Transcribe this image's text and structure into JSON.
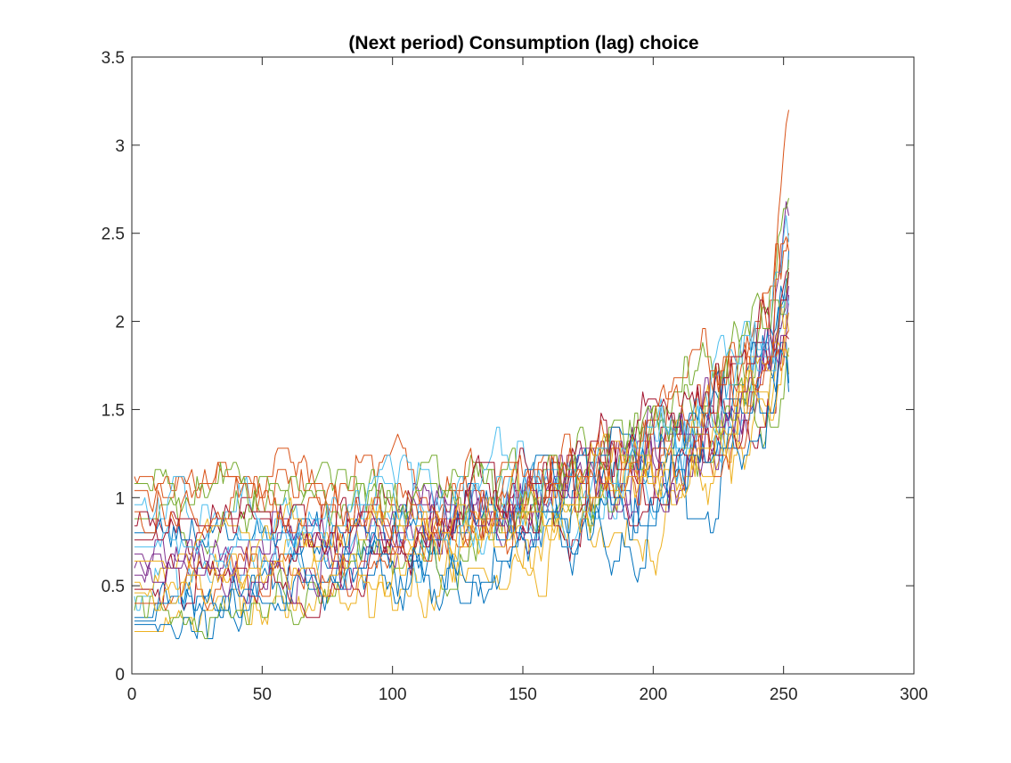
{
  "chart_data": {
    "type": "line",
    "title": "(Next period) Consumption (lag) choice",
    "xlabel": "",
    "ylabel": "",
    "xlim": [
      0,
      300
    ],
    "ylim": [
      0,
      3.5
    ],
    "xticks": [
      0,
      50,
      100,
      150,
      200,
      250,
      300
    ],
    "yticks": [
      0,
      0.5,
      1,
      1.5,
      2,
      2.5,
      3,
      3.5
    ],
    "xtick_labels": [
      "0",
      "50",
      "100",
      "150",
      "200",
      "250",
      "300"
    ],
    "ytick_labels": [
      "0",
      "0.5",
      "1",
      "1.5",
      "2",
      "2.5",
      "3",
      "3.5"
    ],
    "grid": false,
    "legend": "none",
    "n_periods": 252,
    "value_step": 0.04,
    "colors": [
      "#0072BD",
      "#D95319",
      "#EDB120",
      "#7E2F8E",
      "#77AC30",
      "#4DBEEE",
      "#A2142F"
    ],
    "series": [
      {
        "period": [
          1,
          20,
          50,
          80,
          110,
          140,
          170,
          200,
          230,
          245,
          252
        ],
        "values": [
          0.32,
          0.4,
          0.52,
          0.62,
          0.72,
          0.85,
          1.0,
          1.2,
          1.55,
          1.9,
          2.4
        ]
      },
      {
        "period": [
          1,
          20,
          50,
          80,
          110,
          140,
          170,
          200,
          230,
          245,
          252
        ],
        "values": [
          1.12,
          1.1,
          1.05,
          1.02,
          1.05,
          1.1,
          1.2,
          1.4,
          1.75,
          2.2,
          3.2
        ]
      },
      {
        "period": [
          1,
          20,
          50,
          80,
          110,
          140,
          170,
          200,
          230,
          245,
          252
        ],
        "values": [
          0.24,
          0.3,
          0.38,
          0.45,
          0.55,
          0.65,
          0.8,
          0.95,
          1.2,
          1.45,
          1.7
        ]
      },
      {
        "period": [
          1,
          20,
          50,
          80,
          110,
          140,
          170,
          200,
          230,
          245,
          252
        ],
        "values": [
          0.6,
          0.65,
          0.72,
          0.78,
          0.85,
          0.95,
          1.1,
          1.3,
          1.6,
          1.95,
          2.6
        ]
      },
      {
        "period": [
          1,
          20,
          50,
          80,
          110,
          140,
          170,
          200,
          230,
          245,
          252
        ],
        "values": [
          0.88,
          0.9,
          0.92,
          0.95,
          1.0,
          1.05,
          1.15,
          1.35,
          1.65,
          2.05,
          2.7
        ]
      },
      {
        "period": [
          1,
          20,
          50,
          80,
          110,
          140,
          170,
          200,
          230,
          245,
          252
        ],
        "values": [
          0.44,
          0.5,
          0.58,
          0.66,
          0.76,
          0.88,
          1.02,
          1.2,
          1.48,
          1.8,
          2.1
        ]
      },
      {
        "period": [
          1,
          20,
          50,
          80,
          110,
          140,
          170,
          200,
          230,
          245,
          252
        ],
        "values": [
          0.76,
          0.78,
          0.8,
          0.82,
          0.88,
          0.96,
          1.08,
          1.28,
          1.55,
          1.85,
          2.3
        ]
      },
      {
        "period": [
          1,
          20,
          50,
          80,
          110,
          140,
          170,
          200,
          230,
          245,
          252
        ],
        "values": [
          0.28,
          0.34,
          0.42,
          0.5,
          0.6,
          0.7,
          0.84,
          1.0,
          1.25,
          1.5,
          1.65
        ]
      },
      {
        "period": [
          1,
          20,
          50,
          80,
          110,
          140,
          170,
          200,
          230,
          245,
          252
        ],
        "values": [
          1.04,
          1.02,
          1.0,
          0.98,
          1.02,
          1.08,
          1.18,
          1.38,
          1.7,
          2.1,
          2.5
        ]
      },
      {
        "period": [
          1,
          20,
          50,
          80,
          110,
          140,
          170,
          200,
          230,
          245,
          252
        ],
        "values": [
          0.52,
          0.56,
          0.62,
          0.68,
          0.76,
          0.86,
          0.98,
          1.15,
          1.42,
          1.7,
          1.95
        ]
      },
      {
        "period": [
          1,
          20,
          50,
          80,
          110,
          140,
          170,
          200,
          230,
          245,
          252
        ],
        "values": [
          0.68,
          0.7,
          0.74,
          0.78,
          0.84,
          0.92,
          1.04,
          1.22,
          1.5,
          1.8,
          2.2
        ]
      },
      {
        "period": [
          1,
          20,
          50,
          80,
          110,
          140,
          170,
          200,
          230,
          245,
          252
        ],
        "values": [
          0.36,
          0.42,
          0.5,
          0.58,
          0.68,
          0.8,
          0.94,
          1.1,
          1.36,
          1.62,
          1.85
        ]
      },
      {
        "period": [
          1,
          20,
          50,
          80,
          110,
          140,
          170,
          200,
          230,
          245,
          252
        ],
        "values": [
          0.96,
          0.96,
          0.95,
          0.94,
          0.98,
          1.04,
          1.14,
          1.32,
          1.62,
          2.0,
          2.45
        ]
      },
      {
        "period": [
          1,
          20,
          50,
          80,
          110,
          140,
          170,
          200,
          230,
          245,
          252
        ],
        "values": [
          0.48,
          0.52,
          0.58,
          0.64,
          0.72,
          0.82,
          0.96,
          1.12,
          1.38,
          1.64,
          1.9
        ]
      },
      {
        "period": [
          1,
          20,
          50,
          80,
          110,
          140,
          170,
          200,
          230,
          245,
          252
        ],
        "values": [
          0.8,
          0.82,
          0.84,
          0.86,
          0.92,
          1.0,
          1.12,
          1.3,
          1.58,
          1.9,
          2.25
        ]
      },
      {
        "period": [
          1,
          20,
          50,
          80,
          110,
          140,
          170,
          200,
          230,
          245,
          252
        ],
        "values": [
          0.4,
          0.46,
          0.54,
          0.62,
          0.72,
          0.84,
          0.98,
          1.14,
          1.4,
          1.68,
          1.95
        ]
      },
      {
        "period": [
          1,
          20,
          50,
          80,
          110,
          140,
          170,
          200,
          230,
          245,
          252
        ],
        "values": [
          0.64,
          0.66,
          0.7,
          0.74,
          0.8,
          0.9,
          1.02,
          1.2,
          1.46,
          1.75,
          2.05
        ]
      },
      {
        "period": [
          1,
          20,
          50,
          80,
          110,
          140,
          170,
          200,
          230,
          245,
          252
        ],
        "values": [
          0.56,
          0.6,
          0.66,
          0.72,
          0.8,
          0.9,
          1.04,
          1.22,
          1.5,
          1.82,
          2.15
        ]
      },
      {
        "period": [
          1,
          20,
          50,
          80,
          110,
          140,
          170,
          200,
          230,
          245,
          252
        ],
        "values": [
          1.08,
          1.06,
          1.02,
          1.0,
          1.02,
          1.06,
          1.16,
          1.34,
          1.64,
          2.02,
          2.35
        ]
      },
      {
        "period": [
          1,
          20,
          50,
          80,
          110,
          140,
          170,
          200,
          230,
          245,
          252
        ],
        "values": [
          0.72,
          0.74,
          0.78,
          0.82,
          0.88,
          0.98,
          1.1,
          1.28,
          1.56,
          1.88,
          2.1
        ]
      },
      {
        "period": [
          1,
          20,
          50,
          80,
          110,
          140,
          170,
          200,
          230,
          245,
          252
        ],
        "values": [
          0.84,
          0.86,
          0.88,
          0.9,
          0.96,
          1.04,
          1.16,
          1.34,
          1.62,
          1.96,
          2.28
        ]
      },
      {
        "period": [
          1,
          20,
          50,
          80,
          110,
          140,
          170,
          200,
          230,
          245,
          252
        ],
        "values": [
          0.3,
          0.36,
          0.44,
          0.52,
          0.62,
          0.74,
          0.88,
          1.04,
          1.28,
          1.52,
          1.6
        ]
      },
      {
        "period": [
          1,
          20,
          50,
          80,
          110,
          140,
          170,
          200,
          230,
          245,
          252
        ],
        "values": [
          0.92,
          0.92,
          0.92,
          0.92,
          0.96,
          1.02,
          1.12,
          1.3,
          1.6,
          1.98,
          2.4
        ]
      },
      {
        "period": [
          1,
          20,
          50,
          80,
          110,
          140,
          170,
          200,
          230,
          245,
          252
        ],
        "values": [
          0.46,
          0.5,
          0.56,
          0.62,
          0.7,
          0.8,
          0.92,
          1.08,
          1.32,
          1.58,
          1.8
        ]
      }
    ]
  }
}
